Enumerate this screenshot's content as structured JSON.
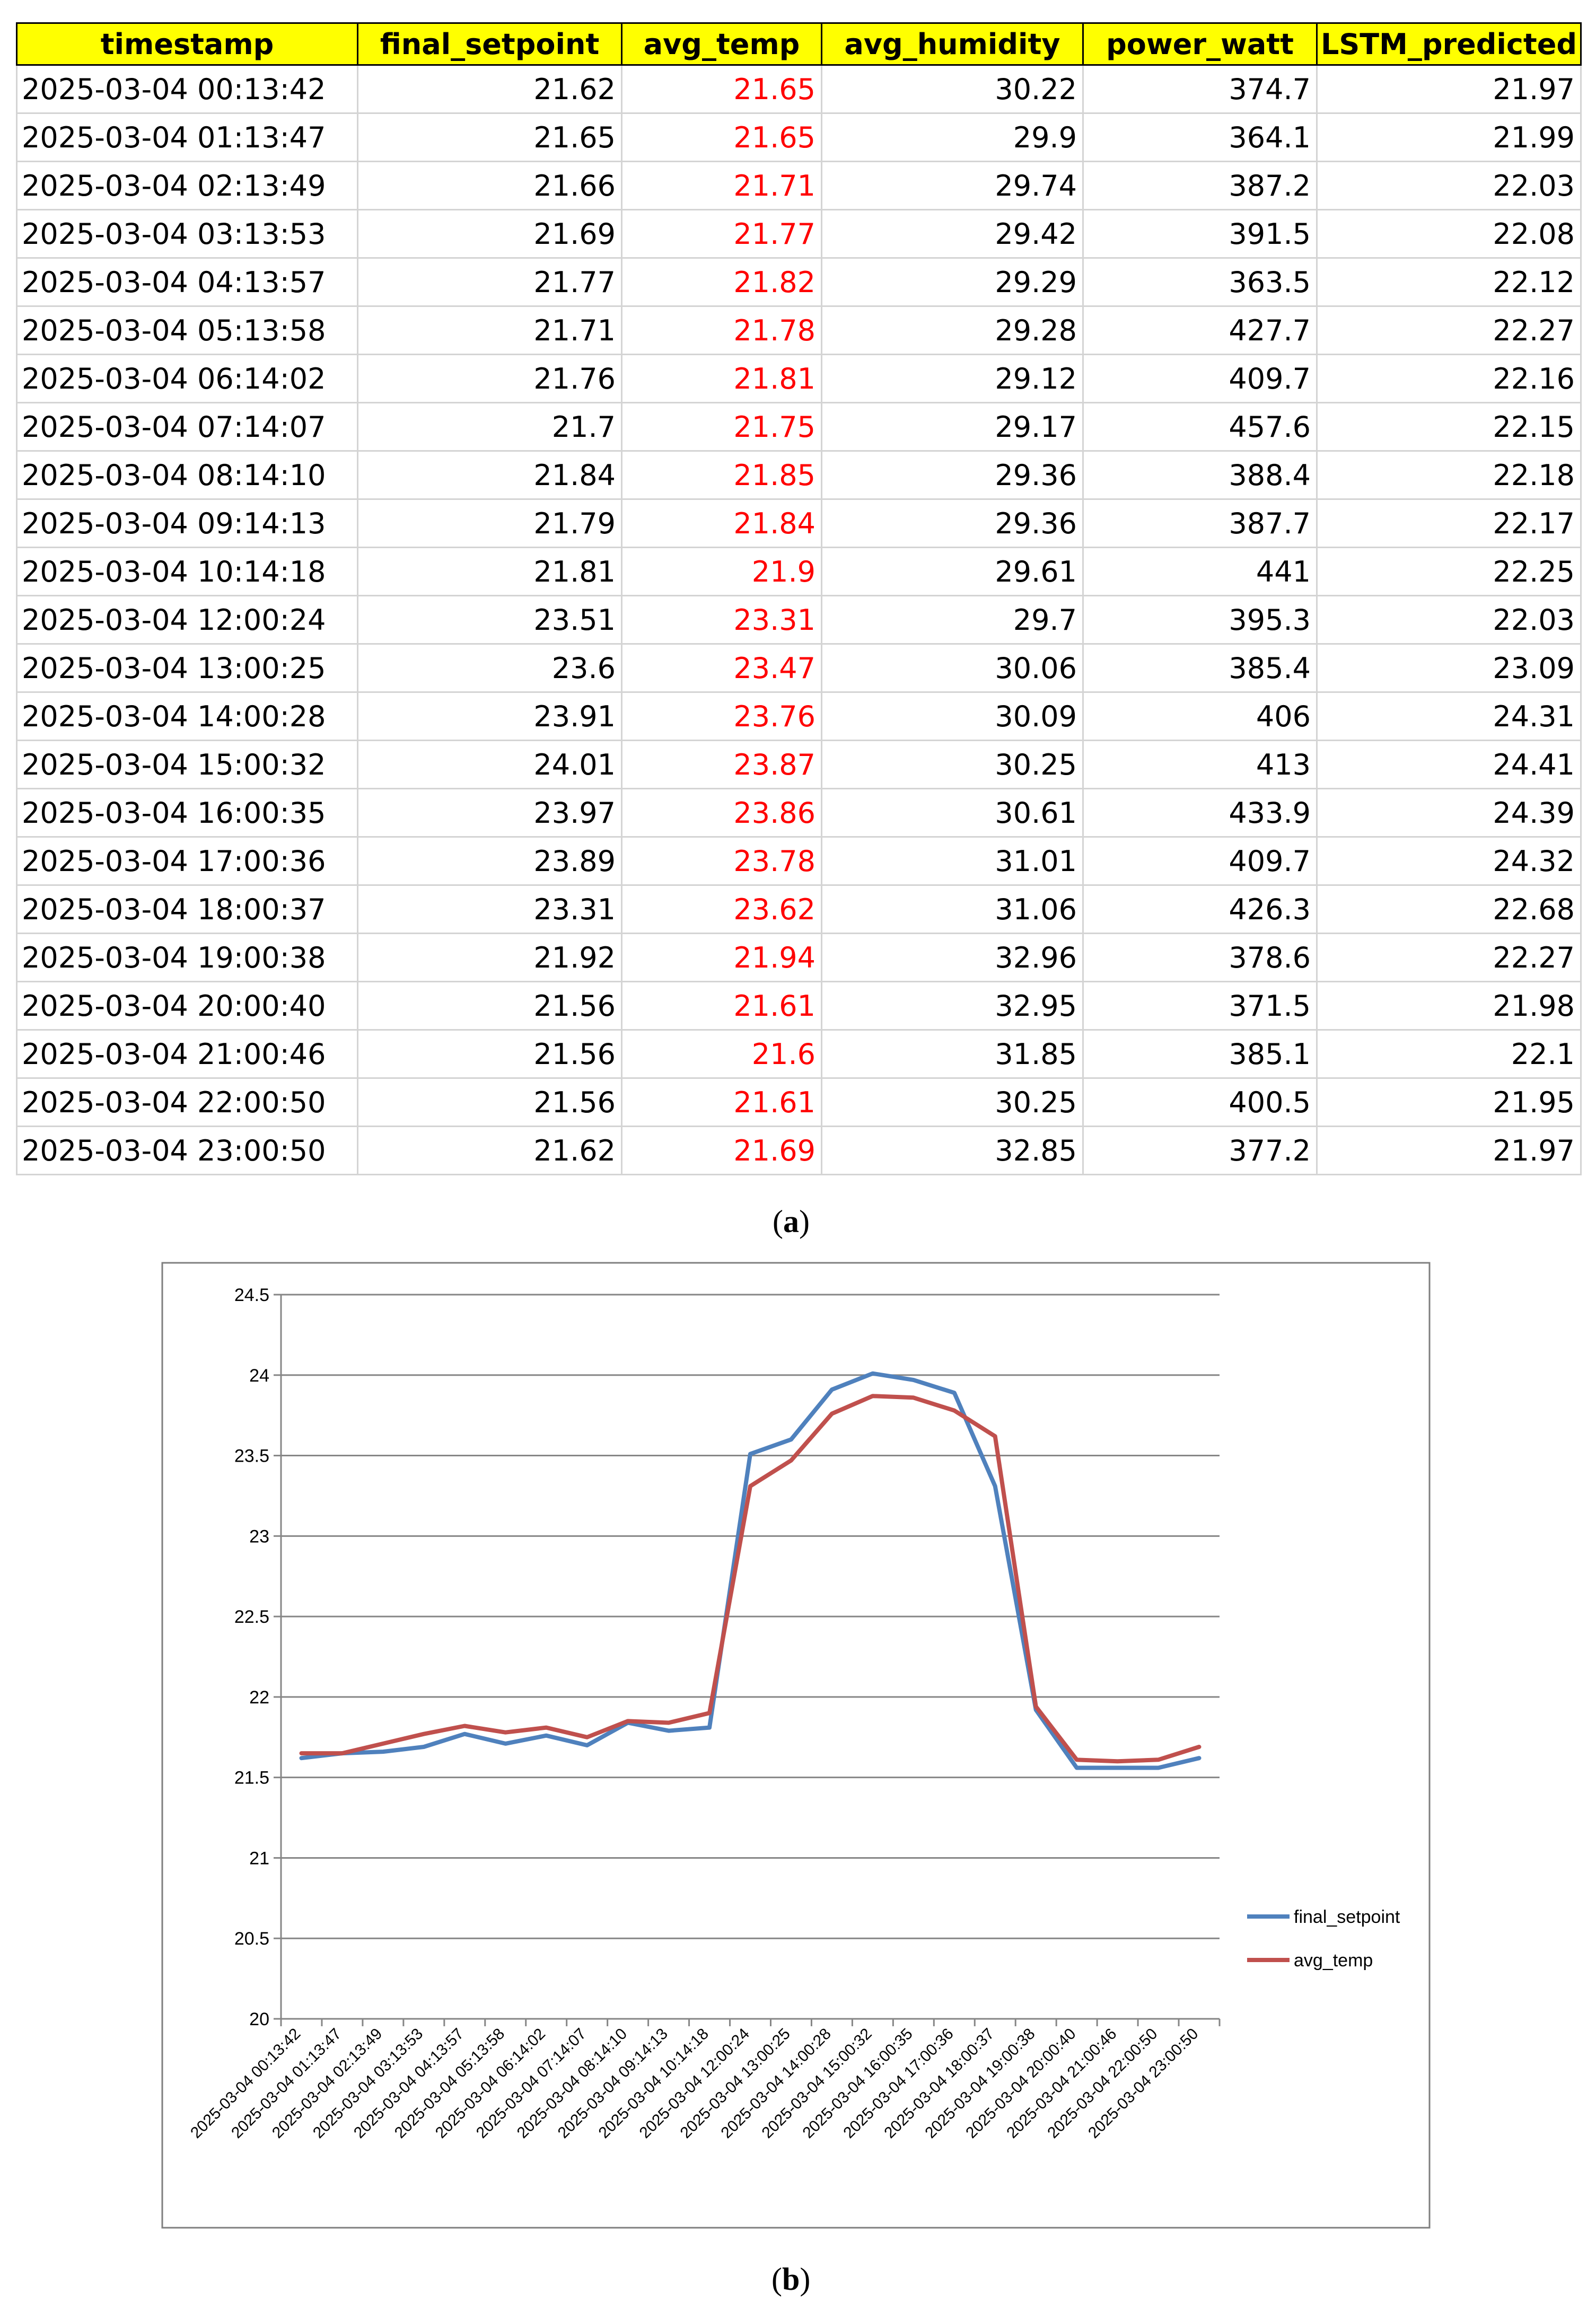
{
  "table": {
    "headers": [
      "timestamp",
      "final_setpoint",
      "avg_temp",
      "avg_humidity",
      "power_watt",
      "LSTM_predicted"
    ],
    "rows": [
      [
        "2025-03-04 00:13:42",
        "21.62",
        "21.65",
        "30.22",
        "374.7",
        "21.97"
      ],
      [
        "2025-03-04 01:13:47",
        "21.65",
        "21.65",
        "29.9",
        "364.1",
        "21.99"
      ],
      [
        "2025-03-04 02:13:49",
        "21.66",
        "21.71",
        "29.74",
        "387.2",
        "22.03"
      ],
      [
        "2025-03-04 03:13:53",
        "21.69",
        "21.77",
        "29.42",
        "391.5",
        "22.08"
      ],
      [
        "2025-03-04 04:13:57",
        "21.77",
        "21.82",
        "29.29",
        "363.5",
        "22.12"
      ],
      [
        "2025-03-04 05:13:58",
        "21.71",
        "21.78",
        "29.28",
        "427.7",
        "22.27"
      ],
      [
        "2025-03-04 06:14:02",
        "21.76",
        "21.81",
        "29.12",
        "409.7",
        "22.16"
      ],
      [
        "2025-03-04 07:14:07",
        "21.7",
        "21.75",
        "29.17",
        "457.6",
        "22.15"
      ],
      [
        "2025-03-04 08:14:10",
        "21.84",
        "21.85",
        "29.36",
        "388.4",
        "22.18"
      ],
      [
        "2025-03-04 09:14:13",
        "21.79",
        "21.84",
        "29.36",
        "387.7",
        "22.17"
      ],
      [
        "2025-03-04 10:14:18",
        "21.81",
        "21.9",
        "29.61",
        "441",
        "22.25"
      ],
      [
        "2025-03-04 12:00:24",
        "23.51",
        "23.31",
        "29.7",
        "395.3",
        "22.03"
      ],
      [
        "2025-03-04 13:00:25",
        "23.6",
        "23.47",
        "30.06",
        "385.4",
        "23.09"
      ],
      [
        "2025-03-04 14:00:28",
        "23.91",
        "23.76",
        "30.09",
        "406",
        "24.31"
      ],
      [
        "2025-03-04 15:00:32",
        "24.01",
        "23.87",
        "30.25",
        "413",
        "24.41"
      ],
      [
        "2025-03-04 16:00:35",
        "23.97",
        "23.86",
        "30.61",
        "433.9",
        "24.39"
      ],
      [
        "2025-03-04 17:00:36",
        "23.89",
        "23.78",
        "31.01",
        "409.7",
        "24.32"
      ],
      [
        "2025-03-04 18:00:37",
        "23.31",
        "23.62",
        "31.06",
        "426.3",
        "22.68"
      ],
      [
        "2025-03-04 19:00:38",
        "21.92",
        "21.94",
        "32.96",
        "378.6",
        "22.27"
      ],
      [
        "2025-03-04 20:00:40",
        "21.56",
        "21.61",
        "32.95",
        "371.5",
        "21.98"
      ],
      [
        "2025-03-04 21:00:46",
        "21.56",
        "21.6",
        "31.85",
        "385.1",
        "22.1"
      ],
      [
        "2025-03-04 22:00:50",
        "21.56",
        "21.61",
        "30.25",
        "400.5",
        "21.95"
      ],
      [
        "2025-03-04 23:00:50",
        "21.62",
        "21.69",
        "32.85",
        "377.2",
        "21.97"
      ]
    ],
    "header_color": "#ffff00",
    "highlight_column": "avg_temp",
    "highlight_color": "#ff0000"
  },
  "captions": {
    "a": "a",
    "b": "b"
  },
  "chart_data": {
    "type": "line",
    "title": "",
    "xlabel": "",
    "ylabel": "",
    "categories": [
      "2025-03-04 00:13:42",
      "2025-03-04 01:13:47",
      "2025-03-04 02:13:49",
      "2025-03-04 03:13:53",
      "2025-03-04 04:13:57",
      "2025-03-04 05:13:58",
      "2025-03-04 06:14:02",
      "2025-03-04 07:14:07",
      "2025-03-04 08:14:10",
      "2025-03-04 09:14:13",
      "2025-03-04 10:14:18",
      "2025-03-04 12:00:24",
      "2025-03-04 13:00:25",
      "2025-03-04 14:00:28",
      "2025-03-04 15:00:32",
      "2025-03-04 16:00:35",
      "2025-03-04 17:00:36",
      "2025-03-04 18:00:37",
      "2025-03-04 19:00:38",
      "2025-03-04 20:00:40",
      "2025-03-04 21:00:46",
      "2025-03-04 22:00:50",
      "2025-03-04 23:00:50"
    ],
    "series": [
      {
        "name": "final_setpoint",
        "color": "#4f81bd",
        "values": [
          21.62,
          21.65,
          21.66,
          21.69,
          21.77,
          21.71,
          21.76,
          21.7,
          21.84,
          21.79,
          21.81,
          23.51,
          23.6,
          23.91,
          24.01,
          23.97,
          23.89,
          23.31,
          21.92,
          21.56,
          21.56,
          21.56,
          21.62
        ]
      },
      {
        "name": "avg_temp",
        "color": "#c0504d",
        "values": [
          21.65,
          21.65,
          21.71,
          21.77,
          21.82,
          21.78,
          21.81,
          21.75,
          21.85,
          21.84,
          21.9,
          23.31,
          23.47,
          23.76,
          23.87,
          23.86,
          23.78,
          23.62,
          21.94,
          21.61,
          21.6,
          21.61,
          21.69
        ]
      }
    ],
    "ylim": [
      20,
      24.5
    ],
    "yticks": [
      "20",
      "20.5",
      "21",
      "21.5",
      "22",
      "22.5",
      "23",
      "23.5",
      "24",
      "24.5"
    ],
    "grid": true,
    "legend_position": "right"
  }
}
